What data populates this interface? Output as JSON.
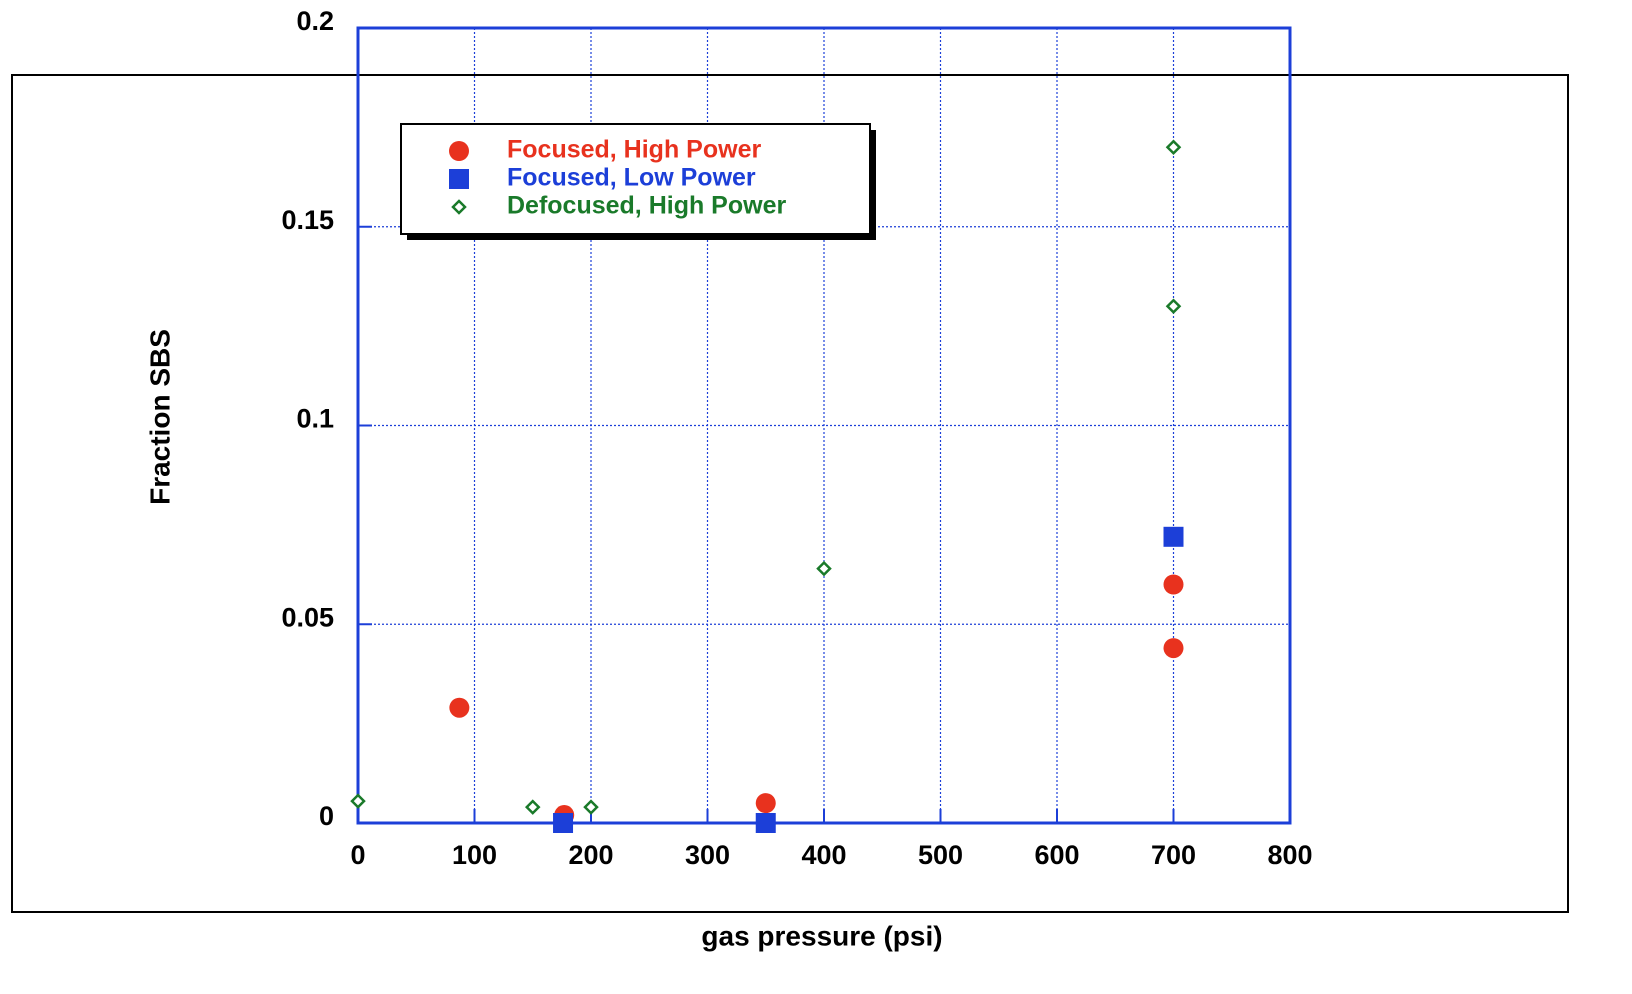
{
  "chart_data": {
    "type": "scatter",
    "x_label": "gas pressure (psi)",
    "y_label": "Fraction SBS",
    "xlim": [
      0,
      800
    ],
    "ylim": [
      0,
      0.2
    ],
    "xticks": [
      0,
      100,
      200,
      300,
      400,
      500,
      600,
      700,
      800
    ],
    "yticks": [
      0,
      0.05,
      0.1,
      0.15,
      0.2
    ],
    "grid": true,
    "series": [
      {
        "name": "Focused, High Power",
        "color": "#e8321e",
        "marker": "circle",
        "x": [
          87,
          177,
          350,
          700,
          700
        ],
        "values": [
          0.029,
          0.002,
          0.005,
          0.06,
          0.044
        ]
      },
      {
        "name": "Focused, Low Power",
        "color": "#1c3fd8",
        "marker": "square",
        "x": [
          176,
          350,
          700
        ],
        "values": [
          0,
          0,
          0.072
        ]
      },
      {
        "name": "Defocused, High Power",
        "color": "#1a7a2a",
        "marker": "diamond",
        "x": [
          0,
          150,
          200,
          400,
          700,
          700
        ],
        "values": [
          0.0055,
          0.004,
          0.004,
          0.064,
          0.17,
          0.13
        ]
      }
    ]
  }
}
